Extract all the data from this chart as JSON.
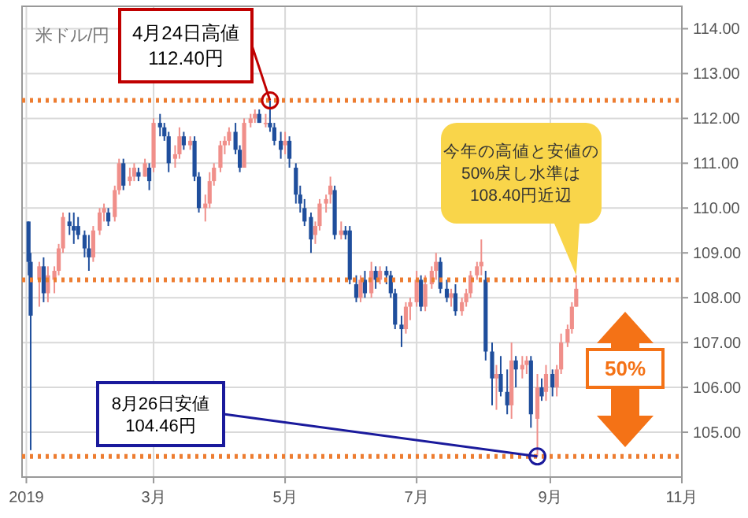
{
  "chart_data": {
    "type": "candlestick",
    "colors": [
      "#1f4e9c",
      "#1f4e9c",
      "#f08f8a",
      "#1f4e9c",
      "#f08f8a",
      "#f08f8a",
      "#f08f8a",
      "#f08f8a",
      "#1f4e9c",
      "#1f4e9c",
      "#1f4e9c",
      "#1f4e9c",
      "#1f4e9c",
      "#f08f8a",
      "#f08f8a",
      "#f08f8a",
      "#1f4e9c",
      "#f08f8a",
      "#f08f8a",
      "#1f4e9c",
      "#f08f8a",
      "#f08f8a",
      "#1f4e9c",
      "#f08f8a",
      "#1f4e9c",
      "#f08f8a",
      "#1f4e9c",
      "#1f4e9c",
      "#1f4e9c",
      "#f08f8a",
      "#f08f8a",
      "#1f4e9c",
      "#f08f8a",
      "#1f4e9c",
      "#1f4e9c",
      "#f08f8a",
      "#f08f8a",
      "#f08f8a",
      "#f08f8a",
      "#f08f8a",
      "#f08f8a",
      "#1f4e9c",
      "#1f4e9c",
      "#f08f8a",
      "#f08f8a",
      "#f08f8a",
      "#1f4e9c",
      "#f08f8a",
      "#1f4e9c",
      "#1f4e9c",
      "#1f4e9c",
      "#f08f8a",
      "#1f4e9c",
      "#1f4e9c",
      "#1f4e9c",
      "#1f4e9c",
      "#1f4e9c",
      "#f08f8a",
      "#f08f8a",
      "#f08f8a",
      "#f08f8a",
      "#1f4e9c",
      "#f08f8a",
      "#1f4e9c",
      "#1f4e9c",
      "#1f4e9c",
      "#f08f8a",
      "#1f4e9c",
      "#f08f8a",
      "#1f4e9c",
      "#f08f8a",
      "#1f4e9c",
      "#1f4e9c",
      "#1f4e9c",
      "#1f4e9c",
      "#f08f8a",
      "#f08f8a",
      "#f08f8a",
      "#1f4e9c",
      "#f08f8a",
      "#f08f8a",
      "#f08f8a",
      "#1f4e9c",
      "#1f4e9c",
      "#f08f8a",
      "#1f4e9c",
      "#f08f8a",
      "#f08f8a",
      "#f08f8a",
      "#f08f8a",
      "#f08f8a",
      "#1f4e9c",
      "#1f4e9c",
      "#f08f8a",
      "#1f4e9c",
      "#1f4e9c",
      "#f08f8a",
      "#1f4e9c",
      "#f08f8a",
      "#f08f8a",
      "#1f4e9c",
      "#f08f8a",
      "#1f4e9c",
      "#f08f8a",
      "#1f4e9c",
      "#f08f8a",
      "#f08f8a",
      "#f08f8a",
      "#f08f8a",
      "#f08f8a"
    ],
    "xlim": [
      "2018-12-30",
      "2019-11-01"
    ],
    "xticks": [
      {
        "value": "2019-01-01",
        "label": "2019"
      },
      {
        "value": "2019-03-01",
        "label": "3月"
      },
      {
        "value": "2019-05-01",
        "label": "5月"
      },
      {
        "value": "2019-07-01",
        "label": "7月"
      },
      {
        "value": "2019-09-01",
        "label": "9月"
      },
      {
        "value": "2019-11-01",
        "label": "11月"
      }
    ],
    "ylim": [
      104.0,
      114.5
    ],
    "yticks": [
      {
        "value": 105,
        "label": "105.00"
      },
      {
        "value": 106,
        "label": "106.00"
      },
      {
        "value": 107,
        "label": "107.00"
      },
      {
        "value": 108,
        "label": "108.00"
      },
      {
        "value": 109,
        "label": "109.00"
      },
      {
        "value": 110,
        "label": "110.00"
      },
      {
        "value": 111,
        "label": "111.00"
      },
      {
        "value": 112,
        "label": "112.00"
      },
      {
        "value": 113,
        "label": "113.00"
      },
      {
        "value": 114,
        "label": "114.00"
      }
    ],
    "grid": true,
    "ref_lines": [
      {
        "axis": "y",
        "value": 112.4,
        "color": "#ed7d31",
        "line_style": "dotted"
      },
      {
        "axis": "y",
        "value": 108.4,
        "color": "#ed7d31",
        "line_style": "dotted"
      },
      {
        "axis": "y",
        "value": 104.46,
        "color": "#ed7d31",
        "line_style": "dotted"
      }
    ],
    "annotations": [
      {
        "text": "4月24日高値\n112.40円",
        "x": "2019-04-24",
        "y": 112.4
      },
      {
        "text": "8月26日安値\n104.46円",
        "x": "2019-08-26",
        "y": 104.46
      },
      "今年の高値と安値の\n50%戻し水準は\n108.40円近辺",
      "50%",
      "米ドル/円"
    ],
    "x": [
      "2019-01-02",
      "2019-01-03",
      "2019-01-07",
      "2019-01-09",
      "2019-01-11",
      "2019-01-14",
      "2019-01-16",
      "2019-01-18",
      "2019-01-21",
      "2019-01-23",
      "2019-01-25",
      "2019-01-28",
      "2019-01-30",
      "2019-02-01",
      "2019-02-04",
      "2019-02-06",
      "2019-02-08",
      "2019-02-11",
      "2019-02-13",
      "2019-02-15",
      "2019-02-18",
      "2019-02-20",
      "2019-02-22",
      "2019-02-25",
      "2019-02-27",
      "2019-03-01",
      "2019-03-04",
      "2019-03-06",
      "2019-03-08",
      "2019-03-11",
      "2019-03-13",
      "2019-03-15",
      "2019-03-18",
      "2019-03-20",
      "2019-03-22",
      "2019-03-25",
      "2019-03-27",
      "2019-03-29",
      "2019-04-01",
      "2019-04-03",
      "2019-04-05",
      "2019-04-08",
      "2019-04-10",
      "2019-04-12",
      "2019-04-15",
      "2019-04-17",
      "2019-04-19",
      "2019-04-22",
      "2019-04-24",
      "2019-04-26",
      "2019-04-29",
      "2019-05-01",
      "2019-05-03",
      "2019-05-06",
      "2019-05-08",
      "2019-05-10",
      "2019-05-13",
      "2019-05-15",
      "2019-05-17",
      "2019-05-20",
      "2019-05-22",
      "2019-05-24",
      "2019-05-27",
      "2019-05-29",
      "2019-05-31",
      "2019-06-03",
      "2019-06-05",
      "2019-06-07",
      "2019-06-10",
      "2019-06-12",
      "2019-06-14",
      "2019-06-17",
      "2019-06-19",
      "2019-06-21",
      "2019-06-24",
      "2019-06-26",
      "2019-06-28",
      "2019-07-01",
      "2019-07-03",
      "2019-07-05",
      "2019-07-08",
      "2019-07-10",
      "2019-07-12",
      "2019-07-15",
      "2019-07-17",
      "2019-07-19",
      "2019-07-22",
      "2019-07-24",
      "2019-07-26",
      "2019-07-29",
      "2019-07-31",
      "2019-08-02",
      "2019-08-05",
      "2019-08-07",
      "2019-08-09",
      "2019-08-12",
      "2019-08-14",
      "2019-08-16",
      "2019-08-19",
      "2019-08-21",
      "2019-08-23",
      "2019-08-26",
      "2019-08-28",
      "2019-08-30",
      "2019-09-02",
      "2019-09-04",
      "2019-09-06",
      "2019-09-09",
      "2019-09-11",
      "2019-09-13"
    ],
    "ohlc": [
      [
        109.7,
        109.7,
        108.5,
        108.8
      ],
      [
        108.8,
        109.0,
        104.6,
        107.6
      ],
      [
        108.4,
        108.8,
        107.8,
        108.7
      ],
      [
        108.7,
        108.9,
        107.9,
        108.1
      ],
      [
        108.1,
        108.7,
        107.9,
        108.5
      ],
      [
        108.4,
        108.7,
        108.1,
        108.6
      ],
      [
        108.6,
        109.2,
        108.5,
        109.1
      ],
      [
        109.1,
        109.9,
        109.0,
        109.8
      ],
      [
        109.7,
        109.9,
        109.4,
        109.6
      ],
      [
        109.6,
        109.9,
        109.2,
        109.5
      ],
      [
        109.6,
        109.8,
        109.3,
        109.4
      ],
      [
        109.4,
        109.5,
        108.9,
        109.1
      ],
      [
        109.1,
        109.4,
        108.6,
        108.9
      ],
      [
        108.9,
        109.6,
        108.8,
        109.5
      ],
      [
        109.5,
        110.0,
        109.4,
        109.9
      ],
      [
        109.9,
        110.1,
        109.7,
        110.0
      ],
      [
        109.9,
        110.0,
        109.6,
        109.7
      ],
      [
        109.8,
        110.5,
        109.7,
        110.4
      ],
      [
        110.4,
        111.1,
        110.3,
        111.0
      ],
      [
        111.0,
        111.1,
        110.4,
        110.5
      ],
      [
        110.6,
        110.9,
        110.5,
        110.7
      ],
      [
        110.7,
        111.0,
        110.6,
        110.9
      ],
      [
        110.8,
        110.9,
        110.6,
        110.7
      ],
      [
        110.7,
        111.1,
        110.7,
        111.0
      ],
      [
        110.9,
        111.0,
        110.4,
        110.6
      ],
      [
        110.9,
        112.0,
        110.8,
        111.9
      ],
      [
        111.9,
        112.1,
        111.6,
        111.8
      ],
      [
        111.8,
        111.9,
        111.5,
        111.6
      ],
      [
        111.6,
        111.7,
        110.8,
        111.0
      ],
      [
        111.1,
        111.4,
        110.9,
        111.2
      ],
      [
        111.2,
        111.8,
        111.1,
        111.6
      ],
      [
        111.6,
        111.7,
        111.3,
        111.4
      ],
      [
        111.4,
        111.6,
        111.3,
        111.5
      ],
      [
        111.5,
        111.6,
        110.6,
        110.7
      ],
      [
        110.7,
        110.8,
        109.9,
        110.0
      ],
      [
        110.0,
        110.3,
        109.7,
        110.1
      ],
      [
        110.1,
        110.8,
        110.0,
        110.6
      ],
      [
        110.6,
        111.0,
        110.5,
        110.9
      ],
      [
        110.9,
        111.5,
        110.8,
        111.4
      ],
      [
        111.4,
        111.6,
        111.2,
        111.5
      ],
      [
        111.5,
        111.8,
        111.4,
        111.7
      ],
      [
        111.7,
        111.9,
        111.2,
        111.3
      ],
      [
        111.3,
        111.4,
        110.8,
        110.9
      ],
      [
        110.9,
        112.0,
        110.9,
        111.9
      ],
      [
        111.9,
        112.1,
        111.8,
        112.0
      ],
      [
        112.0,
        112.2,
        111.9,
        112.1
      ],
      [
        112.1,
        112.2,
        111.9,
        111.9
      ],
      [
        111.9,
        112.1,
        111.8,
        111.9
      ],
      [
        111.9,
        112.4,
        111.7,
        111.8
      ],
      [
        111.8,
        111.9,
        111.4,
        111.5
      ],
      [
        111.5,
        111.7,
        111.1,
        111.3
      ],
      [
        111.4,
        111.7,
        111.2,
        111.5
      ],
      [
        111.5,
        111.6,
        110.9,
        111.1
      ],
      [
        110.9,
        111.0,
        110.1,
        110.3
      ],
      [
        110.3,
        110.5,
        109.9,
        110.1
      ],
      [
        110.0,
        110.2,
        109.6,
        109.7
      ],
      [
        109.8,
        109.9,
        109.0,
        109.3
      ],
      [
        109.4,
        109.7,
        109.2,
        109.6
      ],
      [
        109.6,
        110.2,
        109.5,
        110.1
      ],
      [
        110.1,
        110.3,
        109.9,
        110.2
      ],
      [
        110.3,
        110.7,
        110.1,
        110.5
      ],
      [
        110.4,
        110.5,
        109.3,
        109.4
      ],
      [
        109.4,
        109.7,
        109.3,
        109.5
      ],
      [
        109.5,
        109.6,
        109.3,
        109.4
      ],
      [
        109.5,
        109.6,
        108.3,
        108.4
      ],
      [
        108.3,
        108.5,
        107.9,
        108.0
      ],
      [
        108.0,
        108.5,
        107.9,
        108.4
      ],
      [
        108.4,
        108.6,
        108.0,
        108.1
      ],
      [
        108.1,
        108.8,
        108.0,
        108.6
      ],
      [
        108.6,
        108.7,
        108.2,
        108.4
      ],
      [
        108.4,
        108.7,
        108.3,
        108.6
      ],
      [
        108.6,
        108.7,
        108.3,
        108.5
      ],
      [
        108.5,
        108.6,
        108.0,
        108.1
      ],
      [
        108.1,
        108.2,
        107.3,
        107.4
      ],
      [
        107.4,
        107.6,
        106.9,
        107.3
      ],
      [
        107.3,
        107.9,
        107.2,
        107.8
      ],
      [
        107.8,
        108.0,
        107.5,
        107.9
      ],
      [
        107.9,
        108.6,
        107.8,
        108.4
      ],
      [
        108.4,
        108.5,
        107.7,
        107.8
      ],
      [
        107.8,
        108.5,
        107.7,
        108.3
      ],
      [
        108.3,
        108.7,
        108.2,
        108.6
      ],
      [
        108.6,
        109.0,
        108.4,
        108.8
      ],
      [
        108.8,
        108.9,
        108.1,
        108.2
      ],
      [
        108.2,
        108.4,
        107.9,
        108.0
      ],
      [
        108.0,
        108.2,
        107.8,
        108.1
      ],
      [
        108.1,
        108.3,
        107.6,
        107.7
      ],
      [
        107.7,
        108.0,
        107.6,
        107.9
      ],
      [
        107.9,
        108.2,
        107.8,
        108.1
      ],
      [
        108.1,
        108.6,
        108.0,
        108.5
      ],
      [
        108.5,
        108.8,
        108.4,
        108.7
      ],
      [
        108.7,
        109.3,
        108.5,
        108.8
      ],
      [
        108.4,
        108.6,
        106.6,
        106.8
      ],
      [
        106.8,
        107.0,
        105.6,
        106.2
      ],
      [
        106.2,
        106.5,
        105.5,
        106.3
      ],
      [
        106.3,
        106.7,
        105.8,
        105.9
      ],
      [
        105.9,
        106.4,
        105.4,
        105.6
      ],
      [
        105.6,
        107.0,
        105.3,
        106.6
      ],
      [
        106.6,
        106.7,
        106.0,
        106.4
      ],
      [
        106.4,
        106.7,
        106.2,
        106.5
      ],
      [
        106.5,
        106.7,
        106.3,
        106.6
      ],
      [
        106.6,
        106.7,
        105.1,
        105.4
      ],
      [
        105.3,
        106.3,
        104.46,
        106.0
      ],
      [
        106.0,
        106.2,
        105.7,
        105.8
      ],
      [
        105.9,
        106.5,
        105.7,
        106.3
      ],
      [
        106.3,
        106.4,
        105.8,
        106.0
      ],
      [
        106.0,
        106.5,
        105.8,
        106.4
      ],
      [
        106.4,
        107.2,
        106.3,
        107.0
      ],
      [
        107.0,
        107.4,
        106.9,
        107.3
      ],
      [
        107.3,
        107.9,
        107.2,
        107.8
      ],
      [
        107.8,
        108.5,
        107.8,
        108.2
      ]
    ]
  }
}
